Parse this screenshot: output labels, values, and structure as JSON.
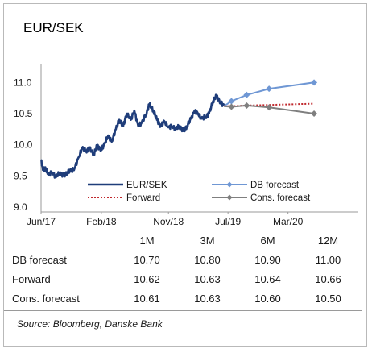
{
  "chart_data": {
    "type": "line",
    "title": "EUR/SEK",
    "x_ticks": [
      "Jun/17",
      "Feb/18",
      "Nov/18",
      "Jul/19",
      "Mar/20"
    ],
    "x_tick_dates": [
      "2017-06",
      "2018-02",
      "2018-11",
      "2019-07",
      "2020-03"
    ],
    "y_ticks": [
      "9.0",
      "9.5",
      "10.0",
      "10.5",
      "11.0"
    ],
    "ylim": [
      9.0,
      11.25
    ],
    "grid": false,
    "legend_position": "bottom, inside plot",
    "series": [
      {
        "name": "EUR/SEK",
        "color": "#1f3d7a",
        "points": [
          [
            "2017-06-01",
            9.75
          ],
          [
            "2017-06-10",
            9.6
          ],
          [
            "2017-06-20",
            9.62
          ],
          [
            "2017-07-01",
            9.52
          ],
          [
            "2017-07-15",
            9.56
          ],
          [
            "2017-08-01",
            9.48
          ],
          [
            "2017-08-15",
            9.55
          ],
          [
            "2017-09-01",
            9.5
          ],
          [
            "2017-09-15",
            9.56
          ],
          [
            "2017-10-01",
            9.58
          ],
          [
            "2017-10-15",
            9.62
          ],
          [
            "2017-11-01",
            9.8
          ],
          [
            "2017-11-15",
            9.95
          ],
          [
            "2017-12-01",
            9.9
          ],
          [
            "2017-12-15",
            9.94
          ],
          [
            "2018-01-01",
            9.85
          ],
          [
            "2018-01-15",
            9.98
          ],
          [
            "2018-02-01",
            9.92
          ],
          [
            "2018-02-15",
            10.02
          ],
          [
            "2018-03-01",
            10.15
          ],
          [
            "2018-03-15",
            10.05
          ],
          [
            "2018-04-01",
            10.25
          ],
          [
            "2018-04-15",
            10.4
          ],
          [
            "2018-05-01",
            10.3
          ],
          [
            "2018-05-15",
            10.5
          ],
          [
            "2018-06-01",
            10.4
          ],
          [
            "2018-06-15",
            10.55
          ],
          [
            "2018-07-01",
            10.3
          ],
          [
            "2018-07-15",
            10.35
          ],
          [
            "2018-08-01",
            10.48
          ],
          [
            "2018-08-15",
            10.65
          ],
          [
            "2018-09-01",
            10.55
          ],
          [
            "2018-09-15",
            10.4
          ],
          [
            "2018-10-01",
            10.3
          ],
          [
            "2018-10-15",
            10.38
          ],
          [
            "2018-11-01",
            10.28
          ],
          [
            "2018-11-15",
            10.3
          ],
          [
            "2018-12-01",
            10.25
          ],
          [
            "2018-12-15",
            10.3
          ],
          [
            "2019-01-01",
            10.22
          ],
          [
            "2019-01-15",
            10.3
          ],
          [
            "2019-02-01",
            10.42
          ],
          [
            "2019-02-15",
            10.55
          ],
          [
            "2019-03-01",
            10.5
          ],
          [
            "2019-03-15",
            10.42
          ],
          [
            "2019-04-01",
            10.45
          ],
          [
            "2019-04-15",
            10.5
          ],
          [
            "2019-05-01",
            10.7
          ],
          [
            "2019-05-15",
            10.78
          ],
          [
            "2019-06-01",
            10.68
          ],
          [
            "2019-06-15",
            10.62
          ]
        ]
      },
      {
        "name": "DB forecast",
        "color": "#6f97d4",
        "points": [
          [
            "2019-06-15",
            10.62
          ],
          [
            "2019-07-15",
            10.7
          ],
          [
            "2019-09-15",
            10.8
          ],
          [
            "2019-12-15",
            10.9
          ],
          [
            "2020-06-15",
            11.0
          ]
        ]
      },
      {
        "name": "Forward",
        "color": "#c0282d",
        "points": [
          [
            "2019-06-15",
            10.62
          ],
          [
            "2019-07-15",
            10.62
          ],
          [
            "2019-09-15",
            10.63
          ],
          [
            "2019-12-15",
            10.64
          ],
          [
            "2020-06-15",
            10.66
          ]
        ]
      },
      {
        "name": "Cons. forecast",
        "color": "#7f7f7f",
        "points": [
          [
            "2019-06-15",
            10.62
          ],
          [
            "2019-07-15",
            10.61
          ],
          [
            "2019-09-15",
            10.63
          ],
          [
            "2019-12-15",
            10.6
          ],
          [
            "2020-06-15",
            10.5
          ]
        ]
      }
    ]
  },
  "table": {
    "columns": [
      "1M",
      "3M",
      "6M",
      "12M"
    ],
    "rows": [
      {
        "label": "DB forecast",
        "values": [
          "10.70",
          "10.80",
          "10.90",
          "11.00"
        ]
      },
      {
        "label": "Forward",
        "values": [
          "10.62",
          "10.63",
          "10.64",
          "10.66"
        ]
      },
      {
        "label": "Cons. forecast",
        "values": [
          "10.61",
          "10.63",
          "10.60",
          "10.50"
        ]
      }
    ]
  },
  "source": "Source: Bloomberg, Danske Bank"
}
